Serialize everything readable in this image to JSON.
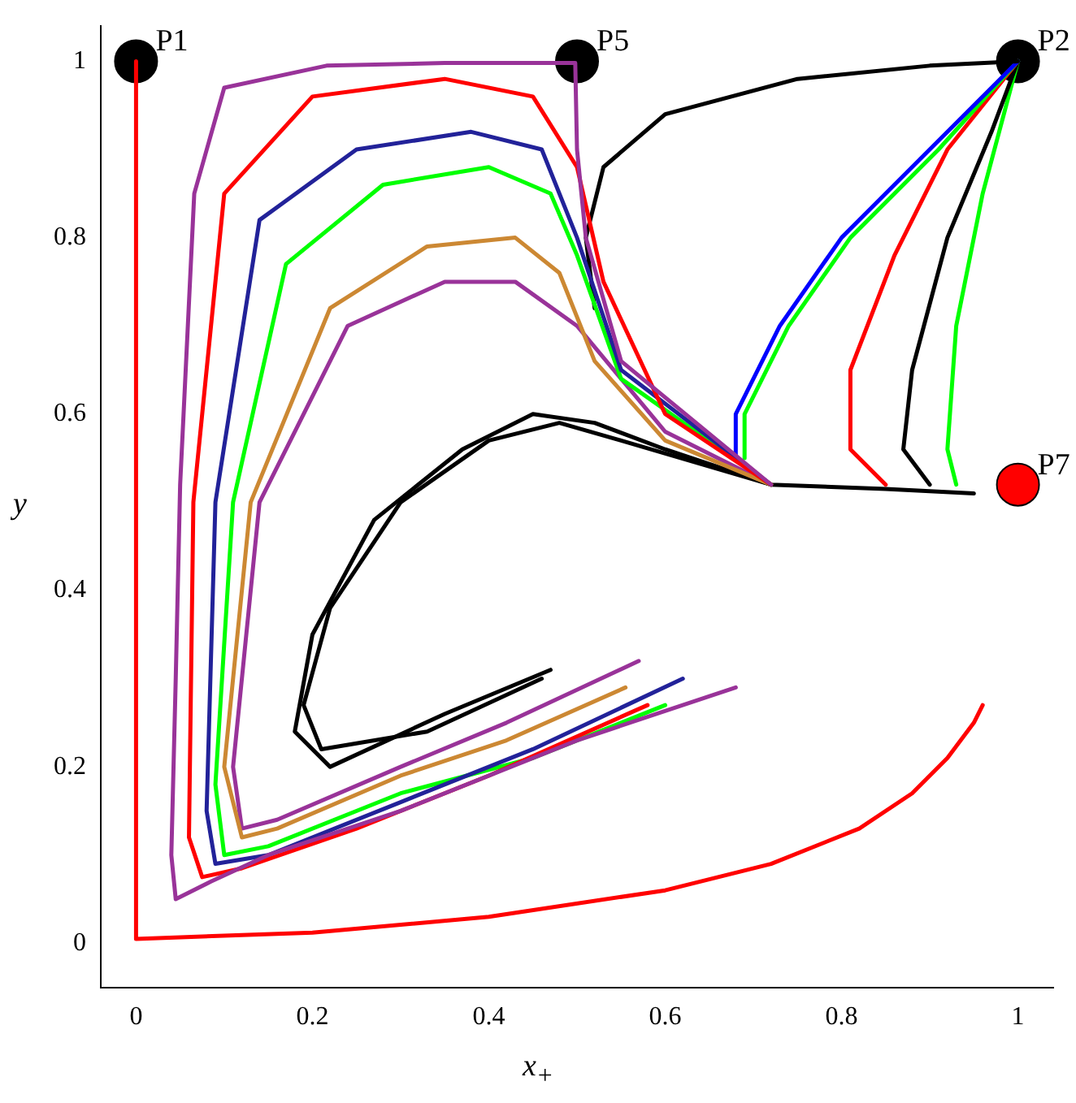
{
  "chart_data": {
    "type": "line",
    "xlabel": "x$_{+}$",
    "ylabel": "y",
    "xlim": [
      -0.04,
      1.04
    ],
    "ylim": [
      -0.05,
      1.04
    ],
    "xticks": [
      0,
      0.2,
      0.4,
      0.6,
      0.8,
      1
    ],
    "yticks": [
      0,
      0.2,
      0.4,
      0.6,
      0.8,
      1
    ],
    "grid": false,
    "legend": false,
    "marker": "none",
    "line_style": "solid",
    "series": [
      {
        "color": "#ff0000",
        "x": [
          0,
          0,
          0.2,
          0.4,
          0.6,
          0.72,
          0.82,
          0.88,
          0.92,
          0.95,
          0.96
        ],
        "values": [
          1,
          0.005,
          0.012,
          0.03,
          0.06,
          0.09,
          0.13,
          0.17,
          0.21,
          0.25,
          0.27
        ]
      },
      {
        "color": "#993399",
        "x": [
          0.68,
          0.5,
          0.3,
          0.15,
          0.085,
          0.045,
          0.04,
          0.045,
          0.05,
          0.066,
          0.1,
          0.216,
          0.35,
          0.498,
          0.5,
          0.51,
          0.55,
          0.72
        ],
        "values": [
          0.29,
          0.23,
          0.15,
          0.1,
          0.07,
          0.05,
          0.1,
          0.3,
          0.52,
          0.85,
          0.97,
          0.995,
          0.998,
          0.998,
          0.9,
          0.8,
          0.66,
          0.52
        ]
      },
      {
        "color": "#ff0000",
        "x": [
          0.58,
          0.4,
          0.25,
          0.12,
          0.075,
          0.06,
          0.065,
          0.1,
          0.2,
          0.35,
          0.45,
          0.5,
          0.53,
          0.6,
          0.72
        ],
        "values": [
          0.27,
          0.19,
          0.13,
          0.085,
          0.075,
          0.12,
          0.5,
          0.85,
          0.96,
          0.98,
          0.96,
          0.88,
          0.75,
          0.6,
          0.52
        ]
      },
      {
        "color": "#222299",
        "x": [
          0.62,
          0.45,
          0.3,
          0.15,
          0.09,
          0.08,
          0.09,
          0.14,
          0.25,
          0.38,
          0.46,
          0.5,
          0.55,
          0.72
        ],
        "values": [
          0.3,
          0.22,
          0.16,
          0.1,
          0.09,
          0.15,
          0.5,
          0.82,
          0.9,
          0.92,
          0.9,
          0.8,
          0.65,
          0.52
        ]
      },
      {
        "color": "#00ff00",
        "x": [
          0.6,
          0.45,
          0.3,
          0.15,
          0.1,
          0.09,
          0.11,
          0.17,
          0.28,
          0.4,
          0.47,
          0.5,
          0.55,
          0.72
        ],
        "values": [
          0.27,
          0.21,
          0.17,
          0.11,
          0.1,
          0.18,
          0.5,
          0.77,
          0.86,
          0.88,
          0.85,
          0.78,
          0.64,
          0.52
        ]
      },
      {
        "color": "#cc8833",
        "x": [
          0.555,
          0.42,
          0.3,
          0.16,
          0.12,
          0.1,
          0.13,
          0.22,
          0.33,
          0.43,
          0.48,
          0.52,
          0.6,
          0.72
        ],
        "values": [
          0.29,
          0.23,
          0.19,
          0.13,
          0.12,
          0.2,
          0.5,
          0.72,
          0.79,
          0.8,
          0.76,
          0.66,
          0.57,
          0.52
        ]
      },
      {
        "color": "#993399",
        "x": [
          0.57,
          0.42,
          0.3,
          0.16,
          0.12,
          0.11,
          0.14,
          0.24,
          0.35,
          0.43,
          0.5,
          0.6,
          0.72
        ],
        "values": [
          0.32,
          0.25,
          0.2,
          0.14,
          0.13,
          0.2,
          0.5,
          0.7,
          0.75,
          0.75,
          0.7,
          0.58,
          0.52
        ]
      },
      {
        "color": "#000000",
        "x": [
          0.47,
          0.35,
          0.22,
          0.18,
          0.2,
          0.27,
          0.37,
          0.45,
          0.52,
          0.6,
          0.72,
          0.85,
          0.95
        ],
        "values": [
          0.31,
          0.26,
          0.2,
          0.24,
          0.35,
          0.48,
          0.56,
          0.6,
          0.59,
          0.56,
          0.52,
          0.515,
          0.51
        ]
      },
      {
        "color": "#000000",
        "x": [
          0.46,
          0.33,
          0.21,
          0.19,
          0.22,
          0.3,
          0.4,
          0.48,
          0.55,
          0.72
        ],
        "values": [
          0.3,
          0.24,
          0.22,
          0.27,
          0.38,
          0.5,
          0.57,
          0.59,
          0.57,
          0.52
        ]
      },
      {
        "color": "#000000",
        "x": [
          0.52,
          0.51,
          0.53,
          0.6,
          0.75,
          0.9,
          1
        ],
        "values": [
          0.72,
          0.8,
          0.88,
          0.94,
          0.98,
          0.995,
          1
        ]
      },
      {
        "color": "#0000ff",
        "x": [
          0.68,
          0.68,
          0.73,
          0.8,
          0.9,
          1
        ],
        "values": [
          0.55,
          0.6,
          0.7,
          0.8,
          0.9,
          1
        ]
      },
      {
        "color": "#00ff00",
        "x": [
          0.69,
          0.69,
          0.74,
          0.81,
          0.91,
          1
        ],
        "values": [
          0.55,
          0.6,
          0.7,
          0.8,
          0.9,
          1
        ]
      },
      {
        "color": "#ff0000",
        "x": [
          0.85,
          0.81,
          0.81,
          0.86,
          0.92,
          1
        ],
        "values": [
          0.52,
          0.56,
          0.65,
          0.78,
          0.9,
          1
        ]
      },
      {
        "color": "#000000",
        "x": [
          0.9,
          0.87,
          0.88,
          0.92,
          0.97,
          1
        ],
        "values": [
          0.52,
          0.56,
          0.65,
          0.8,
          0.92,
          1
        ]
      },
      {
        "color": "#00ff00",
        "x": [
          0.93,
          0.92,
          0.93,
          0.96,
          1
        ],
        "values": [
          0.52,
          0.56,
          0.7,
          0.85,
          1
        ]
      },
      {
        "type": "scatter",
        "marker": "circle",
        "name": "P1",
        "color": "#000000",
        "x": [
          0
        ],
        "values": [
          1
        ]
      },
      {
        "type": "scatter",
        "marker": "circle",
        "name": "P5",
        "color": "#000000",
        "x": [
          0.5
        ],
        "values": [
          1
        ]
      },
      {
        "type": "scatter",
        "marker": "circle",
        "name": "P2",
        "color": "#000000",
        "x": [
          1
        ],
        "values": [
          1
        ]
      },
      {
        "type": "scatter",
        "marker": "circle",
        "name": "P7",
        "color": "#ff0000",
        "x": [
          1
        ],
        "values": [
          0.52
        ]
      }
    ]
  }
}
